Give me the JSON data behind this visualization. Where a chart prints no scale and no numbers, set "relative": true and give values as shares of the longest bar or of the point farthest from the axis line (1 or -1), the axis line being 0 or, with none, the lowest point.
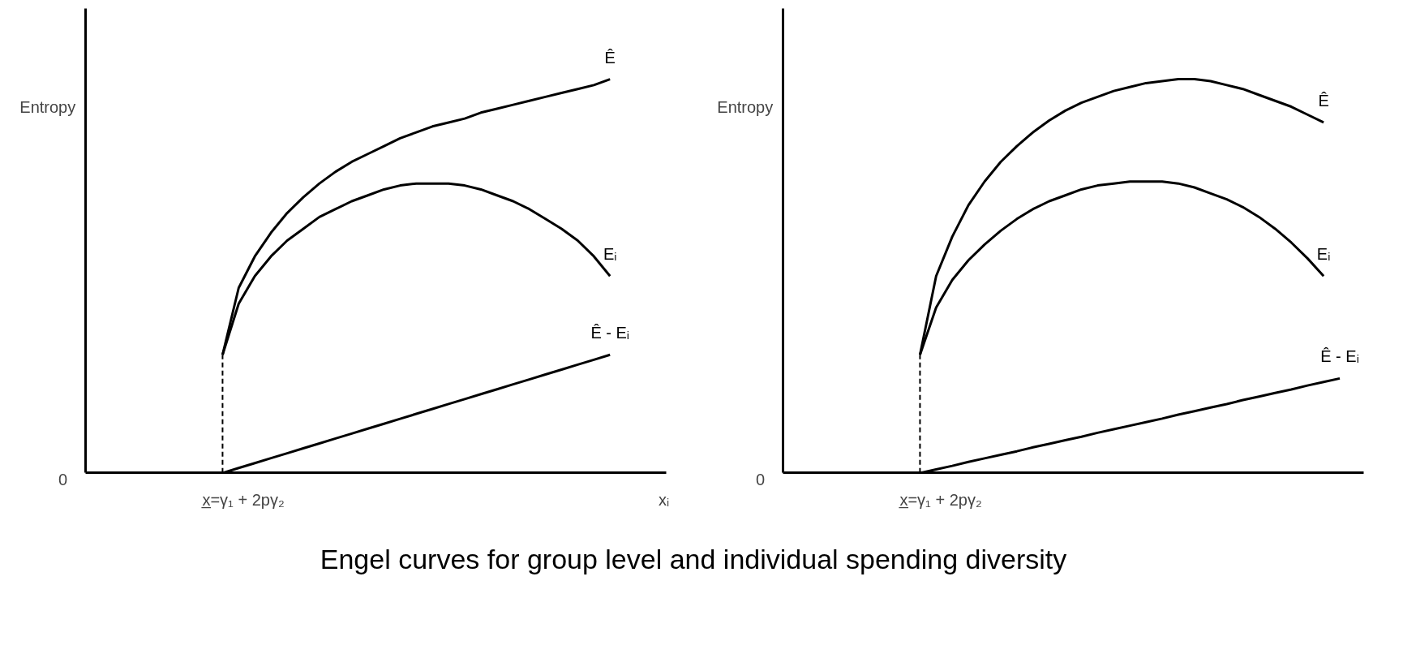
{
  "chart_data": [
    {
      "type": "line",
      "relative": true,
      "ylabel": "Entropy",
      "xlabel": "xᵢ",
      "grid": false,
      "marker": "none",
      "categories": [
        null,
        null,
        null,
        null,
        null,
        null,
        null,
        null,
        null,
        null,
        null,
        null,
        null,
        null,
        null,
        null,
        null,
        null,
        null,
        null,
        null,
        null,
        null,
        null,
        null,
        null,
        null,
        null,
        null,
        null,
        null,
        null,
        null,
        null,
        null,
        null
      ],
      "annotations": [
        "0",
        "x̲=γ₁ + 2pγ₂",
        "Engel curves for group level and individual spending diversity"
      ],
      "series": [
        {
          "name": "Ê",
          "color": "#000000",
          "values": [
            null,
            null,
            null,
            null,
            null,
            null,
            null,
            null,
            0.3,
            0.47,
            0.55,
            0.61,
            0.66,
            0.7,
            0.735,
            0.765,
            0.79,
            0.81,
            0.83,
            0.85,
            0.865,
            0.88,
            0.89,
            0.9,
            0.915,
            0.925,
            0.935,
            0.945,
            0.955,
            0.965,
            0.975,
            0.985,
            1.0,
            null,
            null,
            null
          ]
        },
        {
          "name": "Eᵢ",
          "color": "#000000",
          "values": [
            null,
            null,
            null,
            null,
            null,
            null,
            null,
            null,
            0.3,
            0.43,
            0.5,
            0.55,
            0.59,
            0.62,
            0.65,
            0.67,
            0.69,
            0.705,
            0.72,
            0.73,
            0.735,
            0.735,
            0.735,
            0.73,
            0.72,
            0.705,
            0.69,
            0.67,
            0.645,
            0.62,
            0.59,
            0.55,
            0.5,
            null,
            null,
            null
          ]
        },
        {
          "name": "Ê - Eᵢ",
          "color": "#000000",
          "values": [
            null,
            null,
            null,
            null,
            null,
            null,
            null,
            null,
            0,
            0.0125,
            0.025,
            0.0375,
            0.05,
            0.0625,
            0.075,
            0.0875,
            0.1,
            0.1125,
            0.125,
            0.1375,
            0.15,
            0.1625,
            0.175,
            0.1875,
            0.2,
            0.2125,
            0.225,
            0.2375,
            0.25,
            0.2625,
            0.275,
            0.2875,
            0.3,
            null,
            null,
            null
          ]
        }
      ]
    },
    {
      "type": "line",
      "relative": true,
      "ylabel": "Entropy",
      "grid": false,
      "marker": "none",
      "categories": [
        null,
        null,
        null,
        null,
        null,
        null,
        null,
        null,
        null,
        null,
        null,
        null,
        null,
        null,
        null,
        null,
        null,
        null,
        null,
        null,
        null,
        null,
        null,
        null,
        null,
        null,
        null,
        null,
        null,
        null,
        null,
        null,
        null,
        null,
        null,
        null
      ],
      "annotations": [
        "0",
        "x̲=γ₁ + 2pγ₂"
      ],
      "series": [
        {
          "name": "Ê",
          "color": "#000000",
          "values": [
            null,
            null,
            null,
            null,
            null,
            null,
            null,
            null,
            0.3,
            0.5,
            0.6,
            0.68,
            0.74,
            0.79,
            0.83,
            0.865,
            0.895,
            0.92,
            0.94,
            0.955,
            0.97,
            0.98,
            0.99,
            0.995,
            1.0,
            1.0,
            0.995,
            0.985,
            0.975,
            0.96,
            0.945,
            0.93,
            0.91,
            0.89,
            null,
            null
          ]
        },
        {
          "name": "Eᵢ",
          "color": "#000000",
          "values": [
            null,
            null,
            null,
            null,
            null,
            null,
            null,
            null,
            0.3,
            0.42,
            0.49,
            0.54,
            0.58,
            0.615,
            0.645,
            0.67,
            0.69,
            0.705,
            0.72,
            0.73,
            0.735,
            0.74,
            0.74,
            0.74,
            0.735,
            0.725,
            0.71,
            0.695,
            0.675,
            0.65,
            0.62,
            0.585,
            0.545,
            0.5,
            null,
            null
          ]
        },
        {
          "name": "Ê - Eᵢ",
          "color": "#000000",
          "values": [
            null,
            null,
            null,
            null,
            null,
            null,
            null,
            null,
            0,
            0.009,
            0.018,
            0.028,
            0.037,
            0.046,
            0.055,
            0.065,
            0.074,
            0.083,
            0.092,
            0.102,
            0.111,
            0.12,
            0.129,
            0.138,
            0.148,
            0.157,
            0.166,
            0.175,
            0.185,
            0.194,
            0.203,
            0.212,
            0.222,
            0.231,
            0.24,
            null
          ]
        }
      ]
    }
  ]
}
